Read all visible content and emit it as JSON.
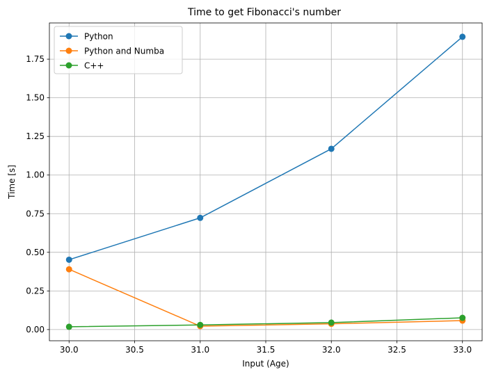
{
  "chart_data": {
    "type": "line",
    "title": "Time to get Fibonacci's number",
    "xlabel": "Input (Age)",
    "ylabel": "Time [s]",
    "x": [
      30.0,
      31.0,
      32.0,
      33.0
    ],
    "xlim": [
      29.85,
      33.15
    ],
    "ylim": [
      -0.0725,
      1.9845
    ],
    "x_ticks": [
      30.0,
      30.5,
      31.0,
      31.5,
      32.0,
      32.5,
      33.0
    ],
    "x_tick_labels": [
      "30.0",
      "30.5",
      "31.0",
      "31.5",
      "32.0",
      "32.5",
      "33.0"
    ],
    "y_ticks": [
      0.0,
      0.25,
      0.5,
      0.75,
      1.0,
      1.25,
      1.5,
      1.75
    ],
    "y_tick_labels": [
      "0.00",
      "0.25",
      "0.50",
      "0.75",
      "1.00",
      "1.25",
      "1.50",
      "1.75"
    ],
    "grid": true,
    "legend_position": "upper left",
    "series": [
      {
        "name": "Python",
        "color": "#1f77b4",
        "marker": "circle",
        "values": [
          0.452,
          0.723,
          1.17,
          1.895
        ]
      },
      {
        "name": "Python and Numba",
        "color": "#ff7f0e",
        "marker": "circle",
        "values": [
          0.39,
          0.022,
          0.037,
          0.058
        ]
      },
      {
        "name": "C++",
        "color": "#2ca02c",
        "marker": "circle",
        "values": [
          0.018,
          0.03,
          0.045,
          0.076
        ]
      }
    ]
  }
}
